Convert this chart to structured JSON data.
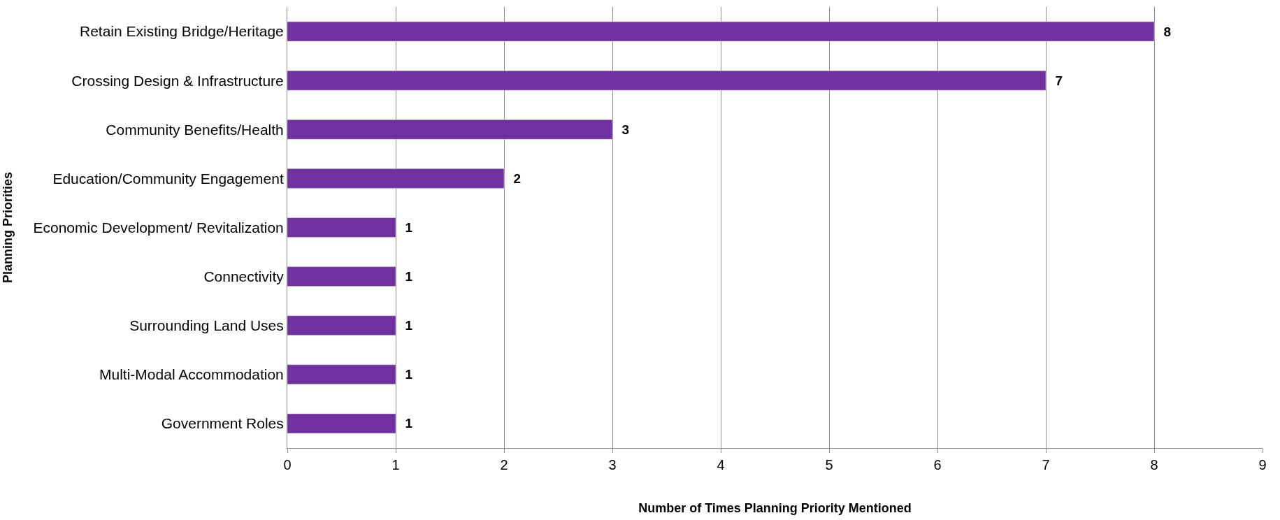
{
  "chart_data": {
    "type": "bar",
    "orientation": "horizontal",
    "categories": [
      "Retain Existing Bridge/Heritage",
      "Crossing Design & Infrastructure",
      "Community Benefits/Health",
      "Education/Community Engagement",
      "Economic Development/ Revitalization",
      "Connectivity",
      "Surrounding Land Uses",
      "Multi-Modal Accommodation",
      "Government Roles"
    ],
    "values": [
      8,
      7,
      3,
      2,
      1,
      1,
      1,
      1,
      1
    ],
    "color": "#7030a0",
    "xlim": [
      0,
      9
    ],
    "xticks": [
      0,
      1,
      2,
      3,
      4,
      5,
      6,
      7,
      8,
      9
    ],
    "xlabel": "Number of Times Planning Priority Mentioned",
    "ylabel": "Planning Priorities",
    "grid": "x",
    "data_labels": true
  }
}
